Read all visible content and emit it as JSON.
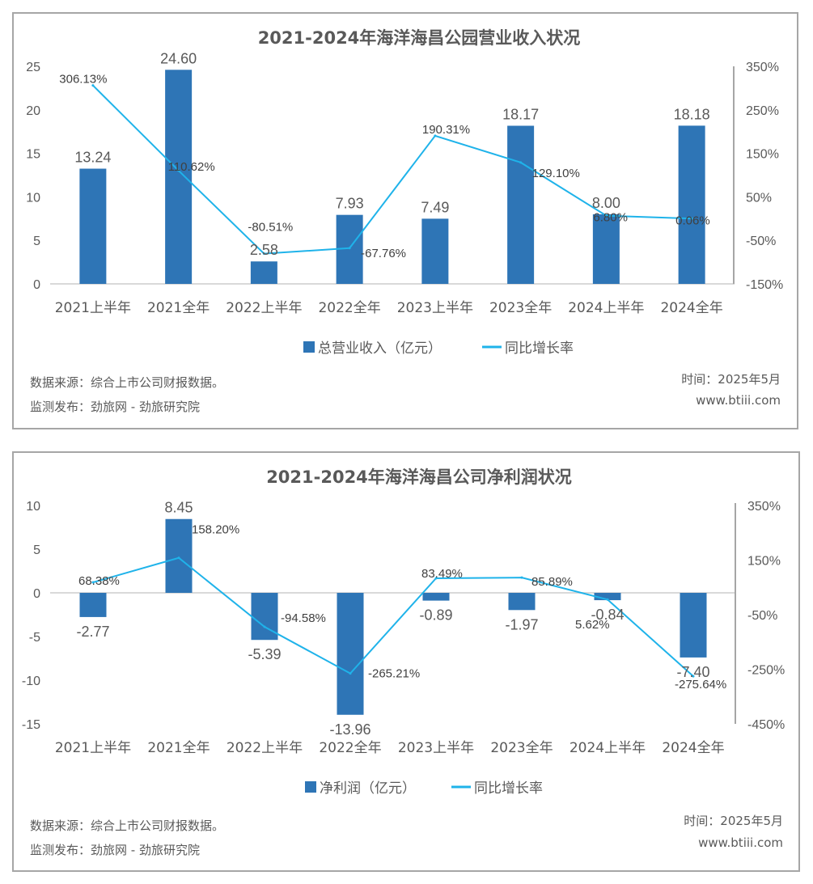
{
  "chart_data": [
    {
      "type": "bar",
      "title": "2021-2024年海洋海昌公园营业收入状况",
      "categories": [
        "2021上半年",
        "2021全年",
        "2022上半年",
        "2022全年",
        "2023上半年",
        "2023全年",
        "2024上半年",
        "2024全年"
      ],
      "series": [
        {
          "name": "总营业收入（亿元）",
          "type": "bar",
          "axis": "left",
          "values": [
            13.24,
            24.6,
            2.58,
            7.93,
            7.49,
            18.17,
            8.0,
            18.18
          ],
          "labels": [
            "13.24",
            "24.60",
            "2.58",
            "7.93",
            "7.49",
            "18.17",
            "8.00",
            "18.18"
          ]
        },
        {
          "name": "同比增长率",
          "type": "line",
          "axis": "right",
          "values": [
            306.13,
            110.62,
            -80.51,
            -67.76,
            190.31,
            129.1,
            6.8,
            0.06
          ],
          "labels": [
            "306.13%",
            "110.62%",
            "-80.51%",
            "-67.76%",
            "190.31%",
            "129.10%",
            "6.80%",
            "0.06%"
          ]
        }
      ],
      "ylim": [
        0,
        25
      ],
      "yticks": [
        "0",
        "5",
        "10",
        "15",
        "20",
        "25"
      ],
      "y2lim": [
        -150,
        350
      ],
      "y2ticks": [
        "-150%",
        "-50%",
        "50%",
        "150%",
        "250%",
        "350%"
      ],
      "legend_position": "bottom",
      "colors": {
        "bar": "#2e75b6",
        "line": "#1fb3ea"
      },
      "footer": {
        "source": "数据来源：综合上市公司财报数据。",
        "publisher": "监测发布：劲旅网 - 劲旅研究院",
        "date": "时间：2025年5月",
        "site": "www.btiii.com"
      }
    },
    {
      "type": "bar",
      "title": "2021-2024年海洋海昌公司净利润状况",
      "categories": [
        "2021上半年",
        "2021全年",
        "2022上半年",
        "2022全年",
        "2023上半年",
        "2023全年",
        "2024上半年",
        "2024全年"
      ],
      "series": [
        {
          "name": "净利润（亿元）",
          "type": "bar",
          "axis": "left",
          "values": [
            -2.77,
            8.45,
            -5.39,
            -13.96,
            -0.89,
            -1.97,
            -0.84,
            -7.4
          ],
          "labels": [
            "-2.77",
            "8.45",
            "-5.39",
            "-13.96",
            "-0.89",
            "-1.97",
            "-0.84",
            "-7.40"
          ]
        },
        {
          "name": "同比增长率",
          "type": "line",
          "axis": "right",
          "values": [
            68.38,
            158.2,
            -94.58,
            -265.21,
            83.49,
            85.89,
            5.62,
            -275.64
          ],
          "labels": [
            "68.38%",
            "158.20%",
            "-94.58%",
            "-265.21%",
            "83.49%",
            "85.89%",
            "5.62%",
            "-275.64%"
          ]
        }
      ],
      "ylim": [
        -15,
        10
      ],
      "yticks": [
        "-15",
        "-10",
        "-5",
        "0",
        "5",
        "10"
      ],
      "y2lim": [
        -450,
        350
      ],
      "y2ticks": [
        "-450%",
        "-250%",
        "-50%",
        "150%",
        "350%"
      ],
      "legend_position": "bottom",
      "colors": {
        "bar": "#2e75b6",
        "line": "#1fb3ea"
      },
      "footer": {
        "source": "数据来源：综合上市公司财报数据。",
        "publisher": "监测发布：劲旅网 - 劲旅研究院",
        "date": "时间：2025年5月",
        "site": "www.btiii.com"
      }
    }
  ]
}
